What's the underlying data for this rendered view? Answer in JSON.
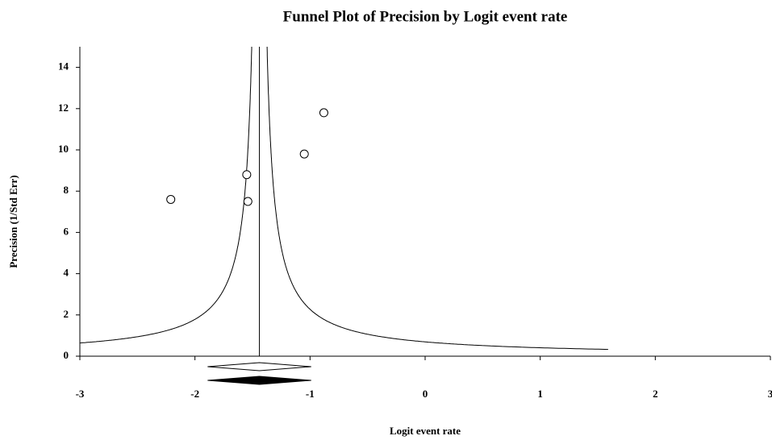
{
  "chart_data": {
    "type": "funnel",
    "title": "Funnel Plot of Precision by Logit event rate",
    "x_label": "Logit event rate",
    "y_label": "Precision (1/Std Err)",
    "xlim": [
      -3,
      3
    ],
    "xticks": [
      -3,
      -2,
      -1,
      0,
      1,
      2,
      3
    ],
    "ylim": [
      0,
      15
    ],
    "yticks": [
      0,
      2,
      4,
      6,
      8,
      10,
      12,
      14
    ],
    "series": [
      {
        "x": [
          -2.21,
          -1.55,
          -1.54,
          -1.05,
          -0.88
        ],
        "values": [
          7.6,
          8.8,
          7.5,
          9.8,
          11.8
        ]
      }
    ],
    "pooled_estimate": -1.44,
    "funnel_width": 1.0,
    "funnel_min_precision": 0.33,
    "summary_diamonds": [
      {
        "center": -1.44,
        "low": -1.89,
        "high": -0.99,
        "filled": false
      },
      {
        "center": -1.44,
        "low": -1.89,
        "high": -0.99,
        "filled": true
      }
    ]
  }
}
